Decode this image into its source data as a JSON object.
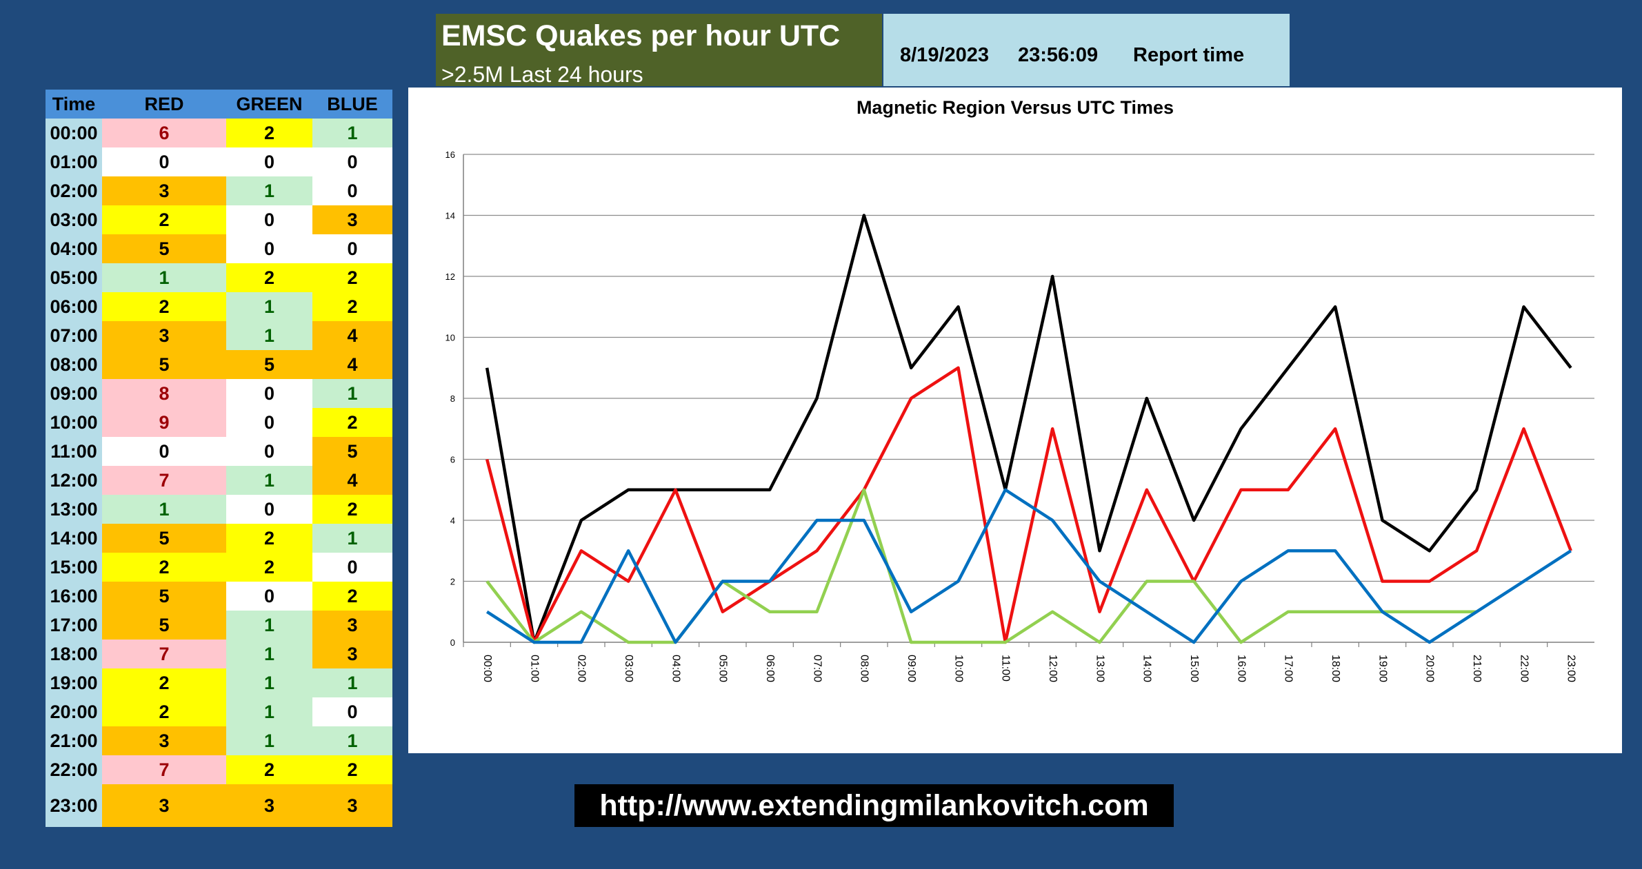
{
  "header": {
    "title": "EMSC Quakes per hour UTC",
    "subtitle": ">2.5M Last 24 hours",
    "report_date": "8/19/2023",
    "report_clock": "23:56:09",
    "report_label": "Report time"
  },
  "table": {
    "headers": [
      "Time",
      "RED",
      "GREEN",
      "BLUE"
    ],
    "rows": [
      {
        "time": "00:00",
        "red": 6,
        "green": 2,
        "blue": 1
      },
      {
        "time": "01:00",
        "red": 0,
        "green": 0,
        "blue": 0
      },
      {
        "time": "02:00",
        "red": 3,
        "green": 1,
        "blue": 0
      },
      {
        "time": "03:00",
        "red": 2,
        "green": 0,
        "blue": 3
      },
      {
        "time": "04:00",
        "red": 5,
        "green": 0,
        "blue": 0
      },
      {
        "time": "05:00",
        "red": 1,
        "green": 2,
        "blue": 2
      },
      {
        "time": "06:00",
        "red": 2,
        "green": 1,
        "blue": 2
      },
      {
        "time": "07:00",
        "red": 3,
        "green": 1,
        "blue": 4
      },
      {
        "time": "08:00",
        "red": 5,
        "green": 5,
        "blue": 4
      },
      {
        "time": "09:00",
        "red": 8,
        "green": 0,
        "blue": 1
      },
      {
        "time": "10:00",
        "red": 9,
        "green": 0,
        "blue": 2
      },
      {
        "time": "11:00",
        "red": 0,
        "green": 0,
        "blue": 5
      },
      {
        "time": "12:00",
        "red": 7,
        "green": 1,
        "blue": 4
      },
      {
        "time": "13:00",
        "red": 1,
        "green": 0,
        "blue": 2
      },
      {
        "time": "14:00",
        "red": 5,
        "green": 2,
        "blue": 1
      },
      {
        "time": "15:00",
        "red": 2,
        "green": 2,
        "blue": 0
      },
      {
        "time": "16:00",
        "red": 5,
        "green": 0,
        "blue": 2
      },
      {
        "time": "17:00",
        "red": 5,
        "green": 1,
        "blue": 3
      },
      {
        "time": "18:00",
        "red": 7,
        "green": 1,
        "blue": 3
      },
      {
        "time": "19:00",
        "red": 2,
        "green": 1,
        "blue": 1
      },
      {
        "time": "20:00",
        "red": 2,
        "green": 1,
        "blue": 0
      },
      {
        "time": "21:00",
        "red": 3,
        "green": 1,
        "blue": 1
      },
      {
        "time": "22:00",
        "red": 7,
        "green": 2,
        "blue": 2
      },
      {
        "time": "23:00",
        "red": 3,
        "green": 3,
        "blue": 3
      }
    ]
  },
  "chart_data": {
    "type": "line",
    "title": "Magnetic Region Versus UTC Times",
    "xlabel": "",
    "ylabel": "",
    "ylim": [
      0,
      16
    ],
    "yticks": [
      0,
      2,
      4,
      6,
      8,
      10,
      12,
      14,
      16
    ],
    "grid": true,
    "legend": "none",
    "x": [
      "00:00",
      "01:00",
      "02:00",
      "03:00",
      "04:00",
      "05:00",
      "06:00",
      "07:00",
      "08:00",
      "09:00",
      "10:00",
      "11:00",
      "12:00",
      "13:00",
      "14:00",
      "15:00",
      "16:00",
      "17:00",
      "18:00",
      "19:00",
      "20:00",
      "21:00",
      "22:00",
      "23:00"
    ],
    "series": [
      {
        "color": "#000000",
        "values": [
          9,
          0,
          4,
          5,
          5,
          5,
          5,
          8,
          14,
          9,
          11,
          5,
          12,
          3,
          8,
          4,
          7,
          9,
          11,
          4,
          3,
          5,
          11,
          9
        ]
      },
      {
        "color": "#ee1111",
        "values": [
          6,
          0,
          3,
          2,
          5,
          1,
          2,
          3,
          5,
          8,
          9,
          0,
          7,
          1,
          5,
          2,
          5,
          5,
          7,
          2,
          2,
          3,
          7,
          3
        ]
      },
      {
        "color": "#92d050",
        "values": [
          2,
          0,
          1,
          0,
          0,
          2,
          1,
          1,
          5,
          0,
          0,
          0,
          1,
          0,
          2,
          2,
          0,
          1,
          1,
          1,
          1,
          1,
          null,
          null
        ]
      },
      {
        "color": "#0070c0",
        "values": [
          1,
          0,
          0,
          3,
          0,
          2,
          2,
          4,
          4,
          1,
          2,
          5,
          4,
          2,
          1,
          0,
          2,
          3,
          3,
          1,
          0,
          1,
          2,
          3
        ]
      }
    ]
  },
  "footer": {
    "url": "http://www.extendingmilankovitch.com"
  }
}
